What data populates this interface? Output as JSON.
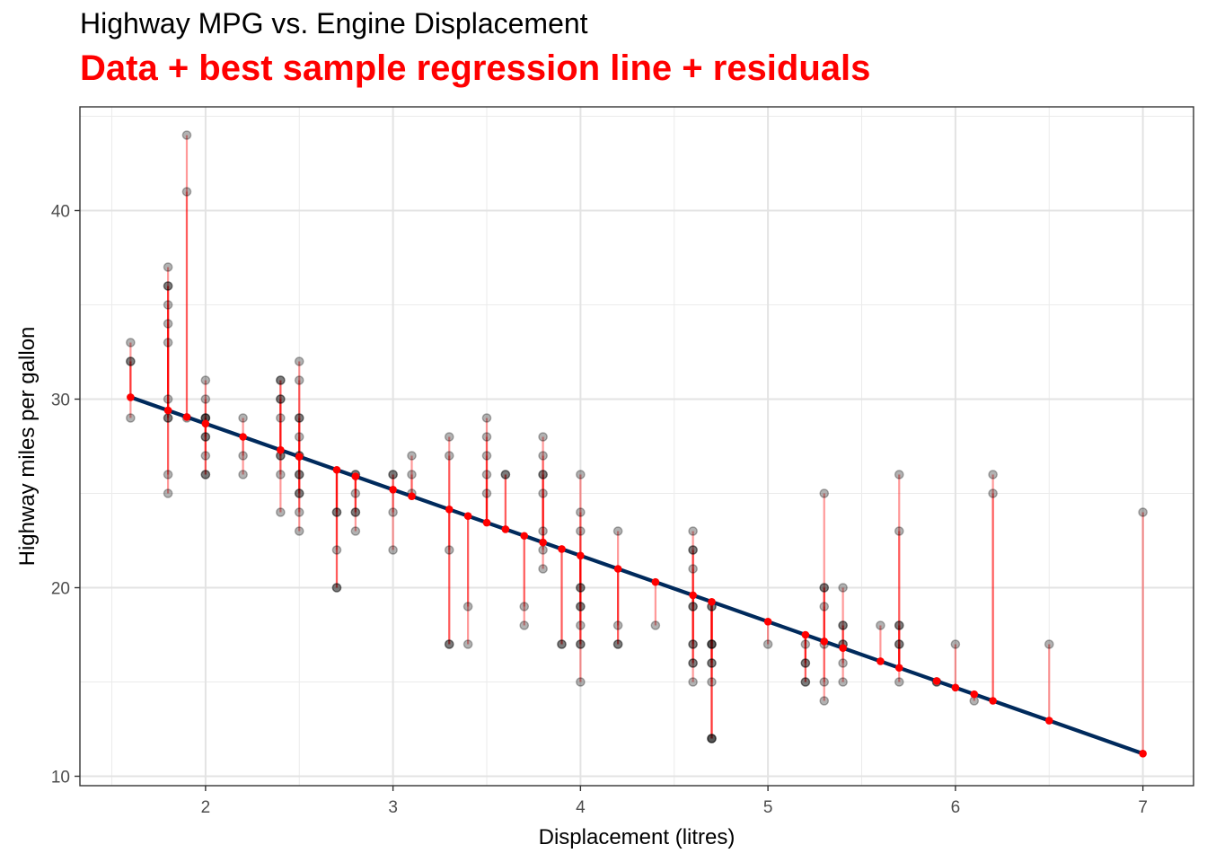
{
  "chart_data": {
    "type": "scatter",
    "title": "Highway MPG vs. Engine Displacement",
    "subtitle": "Data + best sample regression line + residuals",
    "xlabel": "Displacement (litres)",
    "ylabel": "Highway miles per gallon",
    "xlim": [
      1.33,
      7.27
    ],
    "ylim": [
      9.5,
      45.5
    ],
    "x_ticks": [
      2,
      3,
      4,
      5,
      6,
      7
    ],
    "y_ticks": [
      10,
      20,
      30,
      40
    ],
    "grid": true,
    "regression_line": {
      "intercept": 35.7,
      "slope": -3.5,
      "x_range": [
        1.6,
        7.0
      ]
    },
    "colors": {
      "points": "#000000",
      "residuals": "#ff0000",
      "fitted": "#ff0000",
      "regression_line": "#002a5c",
      "subtitle": "#ff0000"
    },
    "points": [
      [
        1.6,
        33
      ],
      [
        1.6,
        32
      ],
      [
        1.6,
        32
      ],
      [
        1.6,
        29
      ],
      [
        1.8,
        37
      ],
      [
        1.8,
        36
      ],
      [
        1.8,
        36
      ],
      [
        1.8,
        35
      ],
      [
        1.8,
        34
      ],
      [
        1.8,
        33
      ],
      [
        1.8,
        30
      ],
      [
        1.8,
        29
      ],
      [
        1.8,
        29
      ],
      [
        1.8,
        26
      ],
      [
        1.8,
        25
      ],
      [
        1.9,
        44
      ],
      [
        1.9,
        41
      ],
      [
        1.9,
        29
      ],
      [
        2.0,
        31
      ],
      [
        2.0,
        30
      ],
      [
        2.0,
        29
      ],
      [
        2.0,
        29
      ],
      [
        2.0,
        29
      ],
      [
        2.0,
        28
      ],
      [
        2.0,
        28
      ],
      [
        2.0,
        27
      ],
      [
        2.0,
        26
      ],
      [
        2.0,
        26
      ],
      [
        2.2,
        29
      ],
      [
        2.2,
        27
      ],
      [
        2.2,
        26
      ],
      [
        2.4,
        31
      ],
      [
        2.4,
        31
      ],
      [
        2.4,
        30
      ],
      [
        2.4,
        30
      ],
      [
        2.4,
        29
      ],
      [
        2.4,
        27
      ],
      [
        2.4,
        27
      ],
      [
        2.4,
        26
      ],
      [
        2.4,
        24
      ],
      [
        2.5,
        32
      ],
      [
        2.5,
        31
      ],
      [
        2.5,
        29
      ],
      [
        2.5,
        29
      ],
      [
        2.5,
        28
      ],
      [
        2.5,
        27
      ],
      [
        2.5,
        27
      ],
      [
        2.5,
        26
      ],
      [
        2.5,
        26
      ],
      [
        2.5,
        25
      ],
      [
        2.5,
        25
      ],
      [
        2.5,
        24
      ],
      [
        2.5,
        23
      ],
      [
        2.7,
        24
      ],
      [
        2.7,
        24
      ],
      [
        2.7,
        22
      ],
      [
        2.7,
        20
      ],
      [
        2.7,
        20
      ],
      [
        2.8,
        26
      ],
      [
        2.8,
        26
      ],
      [
        2.8,
        25
      ],
      [
        2.8,
        24
      ],
      [
        2.8,
        24
      ],
      [
        2.8,
        23
      ],
      [
        3.0,
        26
      ],
      [
        3.0,
        26
      ],
      [
        3.0,
        24
      ],
      [
        3.0,
        22
      ],
      [
        3.1,
        27
      ],
      [
        3.1,
        26
      ],
      [
        3.1,
        25
      ],
      [
        3.3,
        28
      ],
      [
        3.3,
        27
      ],
      [
        3.3,
        22
      ],
      [
        3.3,
        17
      ],
      [
        3.3,
        17
      ],
      [
        3.4,
        19
      ],
      [
        3.4,
        17
      ],
      [
        3.5,
        29
      ],
      [
        3.5,
        28
      ],
      [
        3.5,
        27
      ],
      [
        3.5,
        26
      ],
      [
        3.5,
        25
      ],
      [
        3.6,
        26
      ],
      [
        3.6,
        26
      ],
      [
        3.7,
        19
      ],
      [
        3.7,
        18
      ],
      [
        3.8,
        28
      ],
      [
        3.8,
        27
      ],
      [
        3.8,
        26
      ],
      [
        3.8,
        26
      ],
      [
        3.8,
        25
      ],
      [
        3.8,
        23
      ],
      [
        3.8,
        22
      ],
      [
        3.8,
        21
      ],
      [
        3.9,
        17
      ],
      [
        3.9,
        17
      ],
      [
        4.0,
        26
      ],
      [
        4.0,
        24
      ],
      [
        4.0,
        23
      ],
      [
        4.0,
        20
      ],
      [
        4.0,
        20
      ],
      [
        4.0,
        19
      ],
      [
        4.0,
        19
      ],
      [
        4.0,
        18
      ],
      [
        4.0,
        17
      ],
      [
        4.0,
        17
      ],
      [
        4.0,
        15
      ],
      [
        4.2,
        23
      ],
      [
        4.2,
        18
      ],
      [
        4.2,
        17
      ],
      [
        4.2,
        17
      ],
      [
        4.4,
        18
      ],
      [
        4.6,
        23
      ],
      [
        4.6,
        22
      ],
      [
        4.6,
        22
      ],
      [
        4.6,
        21
      ],
      [
        4.6,
        19
      ],
      [
        4.6,
        19
      ],
      [
        4.6,
        17
      ],
      [
        4.6,
        17
      ],
      [
        4.6,
        16
      ],
      [
        4.6,
        16
      ],
      [
        4.6,
        15
      ],
      [
        4.7,
        19
      ],
      [
        4.7,
        19
      ],
      [
        4.7,
        17
      ],
      [
        4.7,
        17
      ],
      [
        4.7,
        17
      ],
      [
        4.7,
        16
      ],
      [
        4.7,
        16
      ],
      [
        4.7,
        15
      ],
      [
        4.7,
        12
      ],
      [
        4.7,
        12
      ],
      [
        4.7,
        12
      ],
      [
        5.0,
        17
      ],
      [
        5.2,
        17
      ],
      [
        5.2,
        16
      ],
      [
        5.2,
        16
      ],
      [
        5.2,
        15
      ],
      [
        5.2,
        15
      ],
      [
        5.3,
        25
      ],
      [
        5.3,
        20
      ],
      [
        5.3,
        20
      ],
      [
        5.3,
        19
      ],
      [
        5.3,
        17
      ],
      [
        5.3,
        15
      ],
      [
        5.3,
        14
      ],
      [
        5.4,
        20
      ],
      [
        5.4,
        18
      ],
      [
        5.4,
        18
      ],
      [
        5.4,
        17
      ],
      [
        5.4,
        17
      ],
      [
        5.4,
        16
      ],
      [
        5.4,
        15
      ],
      [
        5.6,
        18
      ],
      [
        5.7,
        26
      ],
      [
        5.7,
        23
      ],
      [
        5.7,
        18
      ],
      [
        5.7,
        18
      ],
      [
        5.7,
        17
      ],
      [
        5.7,
        17
      ],
      [
        5.7,
        15
      ],
      [
        5.9,
        15
      ],
      [
        5.9,
        15
      ],
      [
        6.0,
        17
      ],
      [
        6.1,
        14
      ],
      [
        6.2,
        26
      ],
      [
        6.2,
        25
      ],
      [
        6.5,
        17
      ],
      [
        7.0,
        24
      ]
    ]
  }
}
